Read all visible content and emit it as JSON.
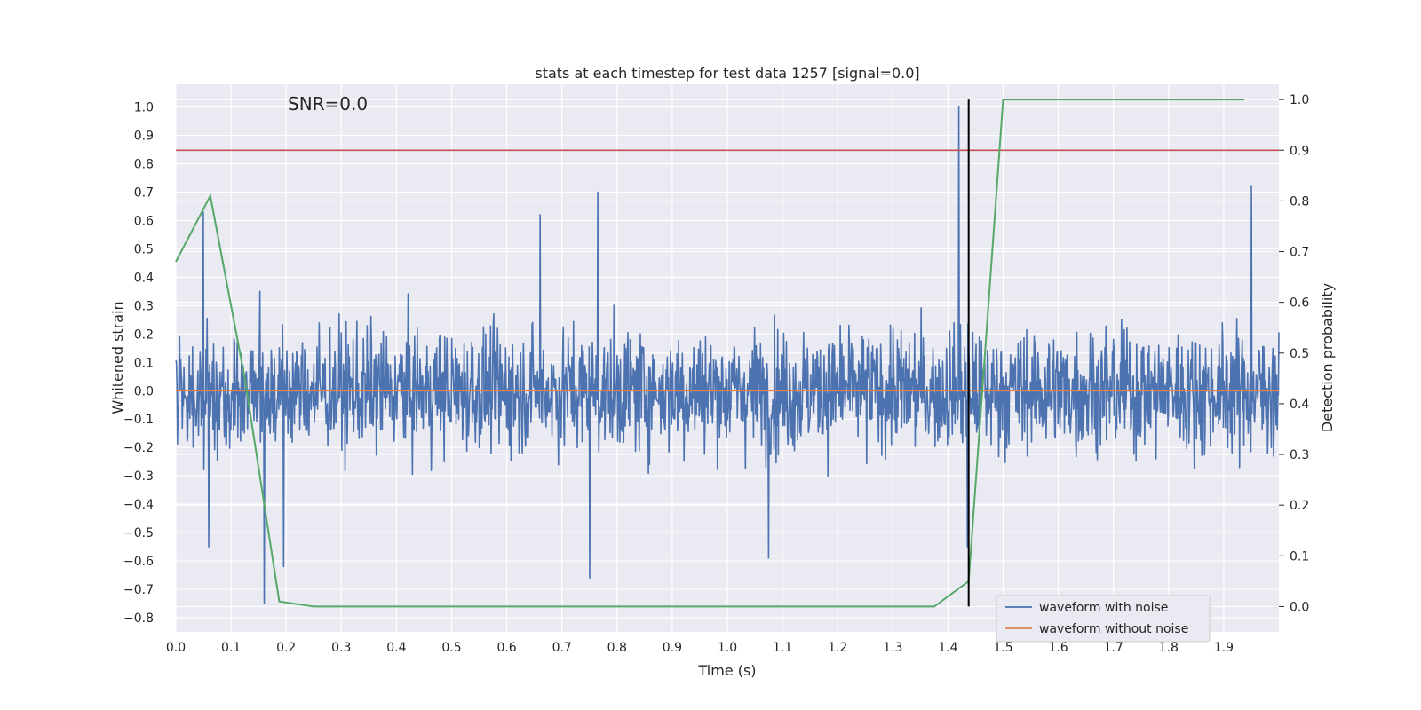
{
  "chart_data": {
    "type": "line",
    "title": "stats at each timestep for test data 1257 [signal=0.0]",
    "annotation": "SNR=0.0",
    "xlabel": "Time (s)",
    "ylabel": "Whitened strain",
    "y2label": "Detection probability",
    "xlim": [
      0.0,
      2.0
    ],
    "ylim": [
      -0.85,
      1.08
    ],
    "y2lim": [
      -0.05,
      1.03
    ],
    "xticks": [
      "0.0",
      "0.1",
      "0.2",
      "0.3",
      "0.4",
      "0.5",
      "0.6",
      "0.7",
      "0.8",
      "0.9",
      "1.0",
      "1.1",
      "1.2",
      "1.3",
      "1.4",
      "1.5",
      "1.6",
      "1.7",
      "1.8",
      "1.9"
    ],
    "yticks": [
      "−0.8",
      "−0.7",
      "−0.6",
      "−0.5",
      "−0.4",
      "−0.3",
      "−0.2",
      "−0.1",
      "0.0",
      "0.1",
      "0.2",
      "0.3",
      "0.4",
      "0.5",
      "0.6",
      "0.7",
      "0.8",
      "0.9",
      "1.0"
    ],
    "y2ticks": [
      "0.0",
      "0.1",
      "0.2",
      "0.3",
      "0.4",
      "0.5",
      "0.6",
      "0.7",
      "0.8",
      "0.9",
      "1.0"
    ],
    "grid": true,
    "legend_position": "bottom-right",
    "series": [
      {
        "name": "waveform with noise",
        "axis": "left",
        "color": "#4c72b0",
        "style": "noise",
        "x_range": [
          0.0,
          2.0
        ],
        "n_points": 2048,
        "amplitude_range": [
          -0.75,
          1.0
        ],
        "peaks": [
          {
            "x": 0.05,
            "y": 0.63
          },
          {
            "x": 0.06,
            "y": -0.55
          },
          {
            "x": 0.16,
            "y": -0.75
          },
          {
            "x": 0.195,
            "y": -0.62
          },
          {
            "x": 0.66,
            "y": 0.62
          },
          {
            "x": 0.75,
            "y": -0.66
          },
          {
            "x": 0.765,
            "y": 0.7
          },
          {
            "x": 1.075,
            "y": -0.59
          },
          {
            "x": 1.42,
            "y": 1.0
          },
          {
            "x": 1.435,
            "y": -0.55
          },
          {
            "x": 1.95,
            "y": 0.72
          }
        ]
      },
      {
        "name": "waveform without noise",
        "axis": "left",
        "color": "#dd8452",
        "x": [
          0.0,
          2.0
        ],
        "y": [
          0.0,
          0.0
        ]
      },
      {
        "name": "detection probability",
        "axis": "right",
        "color": "#55a868",
        "x": [
          0.0,
          0.0625,
          0.125,
          0.1875,
          0.25,
          1.375,
          1.4375,
          1.5,
          1.9375
        ],
        "y": [
          0.68,
          0.81,
          0.45,
          0.01,
          0.0,
          0.0,
          0.05,
          1.0,
          1.0
        ]
      }
    ],
    "threshold": {
      "axis": "right",
      "value": 0.9,
      "color": "#c44e52"
    },
    "vertical_marker": {
      "x": 1.4375,
      "color": "#000000",
      "y2_range": [
        0.0,
        1.0
      ]
    }
  }
}
